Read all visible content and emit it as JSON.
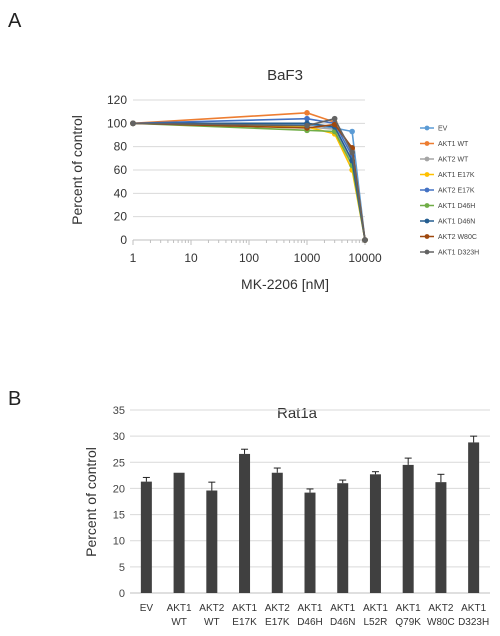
{
  "panel_a": {
    "letter": "A"
  },
  "panel_b": {
    "letter": "B"
  },
  "chart_data": [
    {
      "type": "line",
      "title": "BaF3",
      "xlabel": "MK-2206 [nM]",
      "ylabel": "Percent of control",
      "xscale": "log",
      "xlim": [
        1,
        10000
      ],
      "ylim": [
        0,
        120
      ],
      "x_ticks": [
        "1",
        "10",
        "100",
        "1000",
        "10000"
      ],
      "y_ticks": [
        "0",
        "20",
        "40",
        "60",
        "80",
        "100",
        "120"
      ],
      "grid": "horizontal",
      "legend_position": "right",
      "x": [
        1,
        1000,
        3000,
        6000,
        10000
      ],
      "series": [
        {
          "name": "EV",
          "color": "#5b9bd5",
          "values": [
            100,
            99,
            96,
            93,
            0
          ]
        },
        {
          "name": "AKT1 WT",
          "color": "#ed7d31",
          "values": [
            100,
            109,
            101,
            78,
            0
          ]
        },
        {
          "name": "AKT2 WT",
          "color": "#a5a5a5",
          "values": [
            100,
            97,
            95,
            65,
            0
          ]
        },
        {
          "name": "AKT1 E17K",
          "color": "#ffc000",
          "values": [
            100,
            97,
            91,
            60,
            0
          ]
        },
        {
          "name": "AKT2 E17K",
          "color": "#4472c4",
          "values": [
            100,
            104,
            100,
            72,
            0
          ]
        },
        {
          "name": "AKT1 D46H",
          "color": "#70ad47",
          "values": [
            100,
            94,
            93,
            64,
            0
          ]
        },
        {
          "name": "AKT1 D46N",
          "color": "#255e91",
          "values": [
            100,
            100,
            97,
            68,
            0
          ]
        },
        {
          "name": "AKT2 W80C",
          "color": "#9e480e",
          "values": [
            100,
            96,
            99,
            79,
            0
          ]
        },
        {
          "name": "AKT1 D323H",
          "color": "#636363",
          "values": [
            100,
            98,
            104,
            75,
            0
          ]
        }
      ]
    },
    {
      "type": "bar",
      "title": "Rat1a",
      "xlabel": "",
      "ylabel": "Percent of control",
      "ylim": [
        0,
        35
      ],
      "y_ticks": [
        "0",
        "5",
        "10",
        "15",
        "20",
        "25",
        "30",
        "35"
      ],
      "grid": "horizontal",
      "bar_color": "#404040",
      "categories": [
        [
          "EV",
          ""
        ],
        [
          "AKT1",
          "WT"
        ],
        [
          "AKT2",
          "WT"
        ],
        [
          "AKT1",
          "E17K"
        ],
        [
          "AKT2",
          "E17K"
        ],
        [
          "AKT1",
          "D46H"
        ],
        [
          "AKT1",
          "D46N"
        ],
        [
          "AKT1",
          "L52R"
        ],
        [
          "AKT1",
          "Q79K"
        ],
        [
          "AKT2",
          "W80C"
        ],
        [
          "AKT1",
          "D323H"
        ]
      ],
      "values": [
        21.3,
        23.0,
        19.6,
        26.6,
        23.0,
        19.2,
        21.0,
        22.7,
        24.5,
        21.2,
        28.8
      ],
      "errors": [
        0.8,
        0.0,
        1.6,
        0.9,
        0.9,
        0.7,
        0.6,
        0.5,
        1.3,
        1.5,
        1.2
      ]
    }
  ]
}
